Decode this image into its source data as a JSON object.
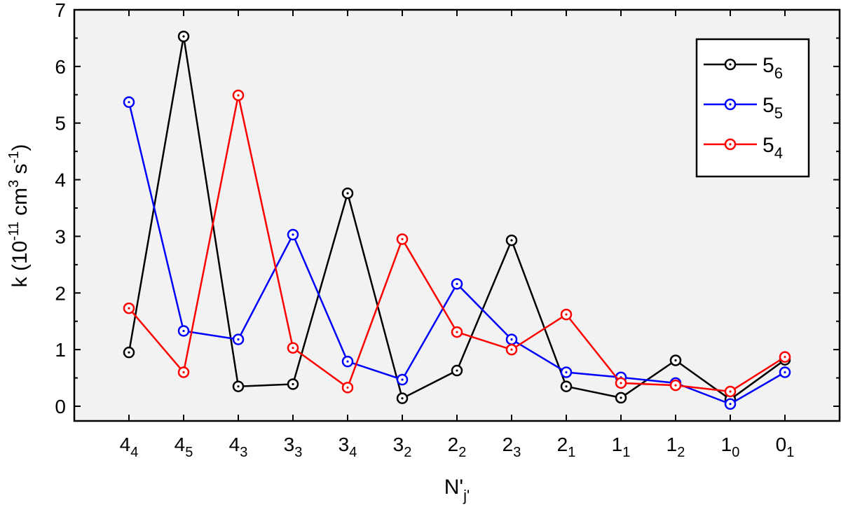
{
  "chart_data": {
    "type": "line",
    "xlabel": {
      "base": "N'",
      "sub": "j'"
    },
    "ylabel": {
      "prefix": "k (10",
      "exp1": "-11",
      "mid": " cm",
      "exp2": "3",
      "mid2": " s",
      "exp3": "-1",
      "suffix": ")"
    },
    "ylim": [
      0,
      7
    ],
    "yticks": [
      "0",
      "1",
      "2",
      "3",
      "4",
      "5",
      "6",
      "7"
    ],
    "categories": [
      {
        "base": "4",
        "sub": "4"
      },
      {
        "base": "4",
        "sub": "5"
      },
      {
        "base": "4",
        "sub": "3"
      },
      {
        "base": "3",
        "sub": "3"
      },
      {
        "base": "3",
        "sub": "4"
      },
      {
        "base": "3",
        "sub": "2"
      },
      {
        "base": "2",
        "sub": "2"
      },
      {
        "base": "2",
        "sub": "3"
      },
      {
        "base": "2",
        "sub": "1"
      },
      {
        "base": "1",
        "sub": "1"
      },
      {
        "base": "1",
        "sub": "2"
      },
      {
        "base": "1",
        "sub": "0"
      },
      {
        "base": "0",
        "sub": "1"
      }
    ],
    "series": [
      {
        "name": "5_6",
        "label_base": "5",
        "label_sub": "6",
        "color": "#000000",
        "values": [
          0.95,
          6.53,
          0.35,
          0.39,
          3.76,
          0.14,
          0.63,
          2.93,
          0.35,
          0.15,
          0.81,
          0.12,
          0.82
        ]
      },
      {
        "name": "5_5",
        "label_base": "5",
        "label_sub": "5",
        "color": "#0000ff",
        "values": [
          5.37,
          1.33,
          1.18,
          3.03,
          0.79,
          0.47,
          2.16,
          1.18,
          0.6,
          0.51,
          0.41,
          0.04,
          0.6
        ]
      },
      {
        "name": "5_4",
        "label_base": "5",
        "label_sub": "4",
        "color": "#ff0000",
        "values": [
          1.73,
          0.6,
          5.49,
          1.03,
          0.33,
          2.95,
          1.31,
          1.0,
          1.62,
          0.41,
          0.37,
          0.26,
          0.87
        ]
      }
    ],
    "legend": {
      "position": "top-right"
    },
    "grid": false,
    "background": "#f2f2f2"
  }
}
